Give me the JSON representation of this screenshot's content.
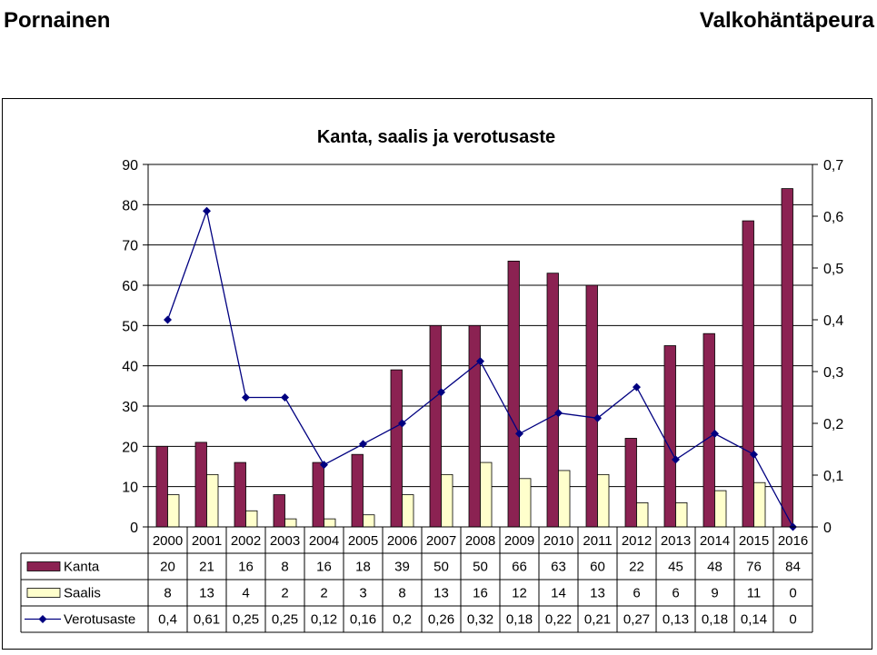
{
  "header": {
    "left": "Pornainen",
    "right": "Valkohäntäpeura"
  },
  "chart_data": {
    "type": "bar",
    "title": "Kanta, saalis ja verotusaste",
    "categories": [
      "2000",
      "2001",
      "2002",
      "2003",
      "2004",
      "2005",
      "2006",
      "2007",
      "2008",
      "2009",
      "2010",
      "2011",
      "2012",
      "2013",
      "2014",
      "2015",
      "2016"
    ],
    "series": [
      {
        "name": "Kanta",
        "type": "bar",
        "axis": "left",
        "color": "#8b2252",
        "values": [
          20,
          21,
          16,
          8,
          16,
          18,
          39,
          50,
          50,
          66,
          63,
          60,
          22,
          45,
          48,
          76,
          84
        ]
      },
      {
        "name": "Saalis",
        "type": "bar",
        "axis": "left",
        "color": "#ffffcc",
        "values": [
          8,
          13,
          4,
          2,
          2,
          3,
          8,
          13,
          16,
          12,
          14,
          13,
          6,
          6,
          9,
          11,
          0
        ]
      },
      {
        "name": "Verotusaste",
        "type": "line",
        "axis": "right",
        "color": "#000080",
        "marker": "diamond",
        "values": [
          0.4,
          0.61,
          0.25,
          0.25,
          0.12,
          0.16,
          0.2,
          0.26,
          0.32,
          0.18,
          0.22,
          0.21,
          0.27,
          0.13,
          0.18,
          0.14,
          0
        ]
      }
    ],
    "table_labels": {
      "Kanta": [
        "20",
        "21",
        "16",
        "8",
        "16",
        "18",
        "39",
        "50",
        "50",
        "66",
        "63",
        "60",
        "22",
        "45",
        "48",
        "76",
        "84"
      ],
      "Saalis": [
        "8",
        "13",
        "4",
        "2",
        "2",
        "3",
        "8",
        "13",
        "16",
        "12",
        "14",
        "13",
        "6",
        "6",
        "9",
        "11",
        "0"
      ],
      "Verotusaste": [
        "0,4",
        "0,61",
        "0,25",
        "0,25",
        "0,12",
        "0,16",
        "0,2",
        "0,26",
        "0,32",
        "0,18",
        "0,22",
        "0,21",
        "0,27",
        "0,13",
        "0,18",
        "0,14",
        "0"
      ]
    },
    "y_left": {
      "range": [
        0,
        90
      ],
      "ticks": [
        "0",
        "10",
        "20",
        "30",
        "40",
        "50",
        "60",
        "70",
        "80",
        "90"
      ]
    },
    "y_right": {
      "range": [
        0,
        0.7
      ],
      "ticks": [
        "0",
        "0,1",
        "0,2",
        "0,3",
        "0,4",
        "0,5",
        "0,6",
        "0,7"
      ]
    },
    "grid": true,
    "legend": "data-table-below"
  }
}
